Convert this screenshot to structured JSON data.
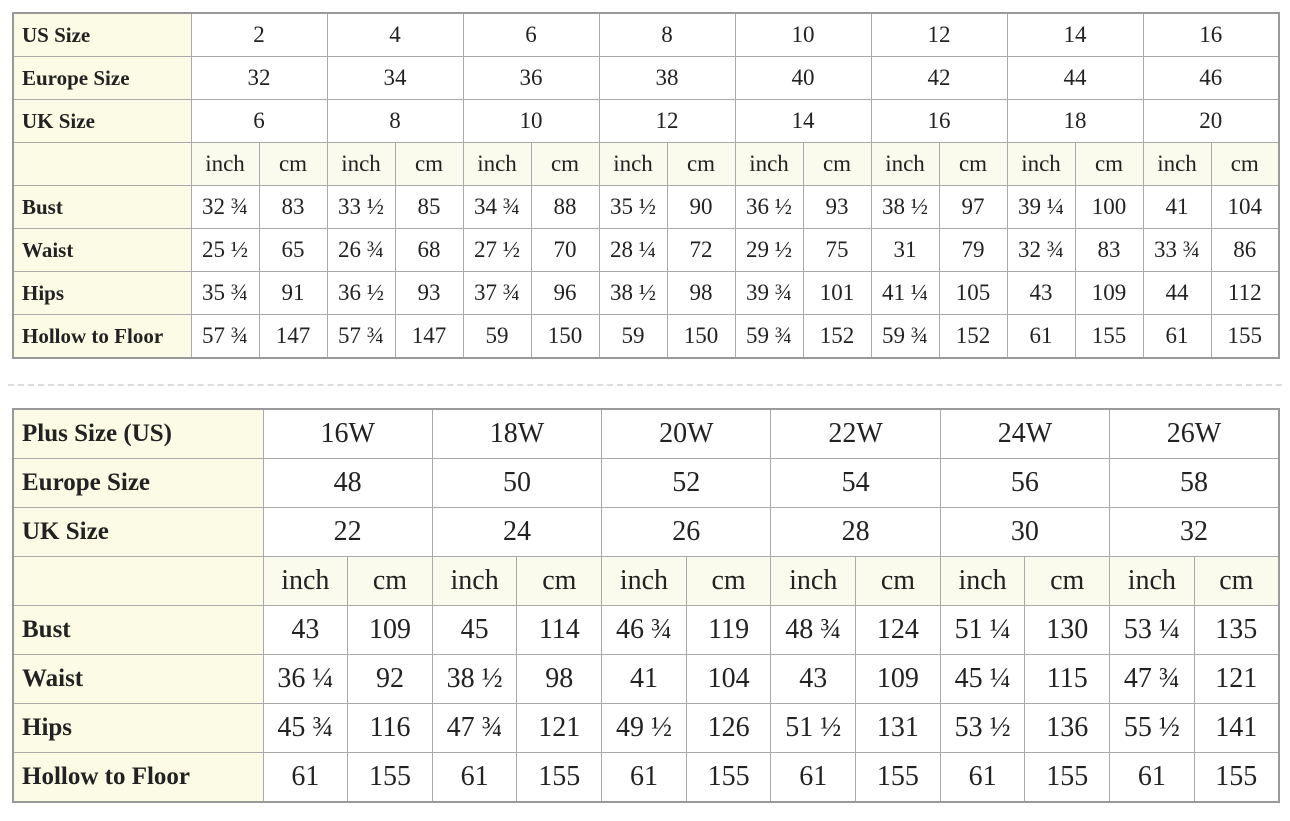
{
  "tables": [
    {
      "header_rows": [
        {
          "label": "US Size",
          "cells": [
            "2",
            "4",
            "6",
            "8",
            "10",
            "12",
            "14",
            "16"
          ]
        },
        {
          "label": "Europe Size",
          "cells": [
            "32",
            "34",
            "36",
            "38",
            "40",
            "42",
            "44",
            "46"
          ]
        },
        {
          "label": "UK Size",
          "cells": [
            "6",
            "8",
            "10",
            "12",
            "14",
            "16",
            "18",
            "20"
          ]
        }
      ],
      "units": [
        "inch",
        "cm"
      ],
      "rows": [
        {
          "label": "Bust",
          "cells": [
            "32 ¾",
            "83",
            "33 ½",
            "85",
            "34 ¾",
            "88",
            "35 ½",
            "90",
            "36 ½",
            "93",
            "38 ½",
            "97",
            "39 ¼",
            "100",
            "41",
            "104"
          ]
        },
        {
          "label": "Waist",
          "cells": [
            "25 ½",
            "65",
            "26 ¾",
            "68",
            "27 ½",
            "70",
            "28 ¼",
            "72",
            "29 ½",
            "75",
            "31",
            "79",
            "32 ¾",
            "83",
            "33 ¾",
            "86"
          ]
        },
        {
          "label": "Hips",
          "cells": [
            "35 ¾",
            "91",
            "36 ½",
            "93",
            "37 ¾",
            "96",
            "38 ½",
            "98",
            "39 ¾",
            "101",
            "41 ¼",
            "105",
            "43",
            "109",
            "44",
            "112"
          ]
        },
        {
          "label": "Hollow to Floor",
          "cells": [
            "57 ¾",
            "147",
            "57 ¾",
            "147",
            "59",
            "150",
            "59",
            "150",
            "59 ¾",
            "152",
            "59 ¾",
            "152",
            "61",
            "155",
            "61",
            "155"
          ]
        }
      ]
    },
    {
      "header_rows": [
        {
          "label": "Plus Size (US)",
          "cells": [
            "16W",
            "18W",
            "20W",
            "22W",
            "24W",
            "26W"
          ]
        },
        {
          "label": "Europe Size",
          "cells": [
            "48",
            "50",
            "52",
            "54",
            "56",
            "58"
          ]
        },
        {
          "label": "UK Size",
          "cells": [
            "22",
            "24",
            "26",
            "28",
            "30",
            "32"
          ]
        }
      ],
      "units": [
        "inch",
        "cm"
      ],
      "rows": [
        {
          "label": "Bust",
          "cells": [
            "43",
            "109",
            "45",
            "114",
            "46 ¾",
            "119",
            "48 ¾",
            "124",
            "51 ¼",
            "130",
            "53 ¼",
            "135"
          ]
        },
        {
          "label": "Waist",
          "cells": [
            "36 ¼",
            "92",
            "38 ½",
            "98",
            "41",
            "104",
            "43",
            "109",
            "45 ¼",
            "115",
            "47 ¾",
            "121"
          ]
        },
        {
          "label": "Hips",
          "cells": [
            "45 ¾",
            "116",
            "47 ¾",
            "121",
            "49 ½",
            "126",
            "51 ½",
            "131",
            "53 ½",
            "136",
            "55 ½",
            "141"
          ]
        },
        {
          "label": "Hollow to Floor",
          "cells": [
            "61",
            "155",
            "61",
            "155",
            "61",
            "155",
            "61",
            "155",
            "61",
            "155",
            "61",
            "155"
          ]
        }
      ]
    }
  ]
}
